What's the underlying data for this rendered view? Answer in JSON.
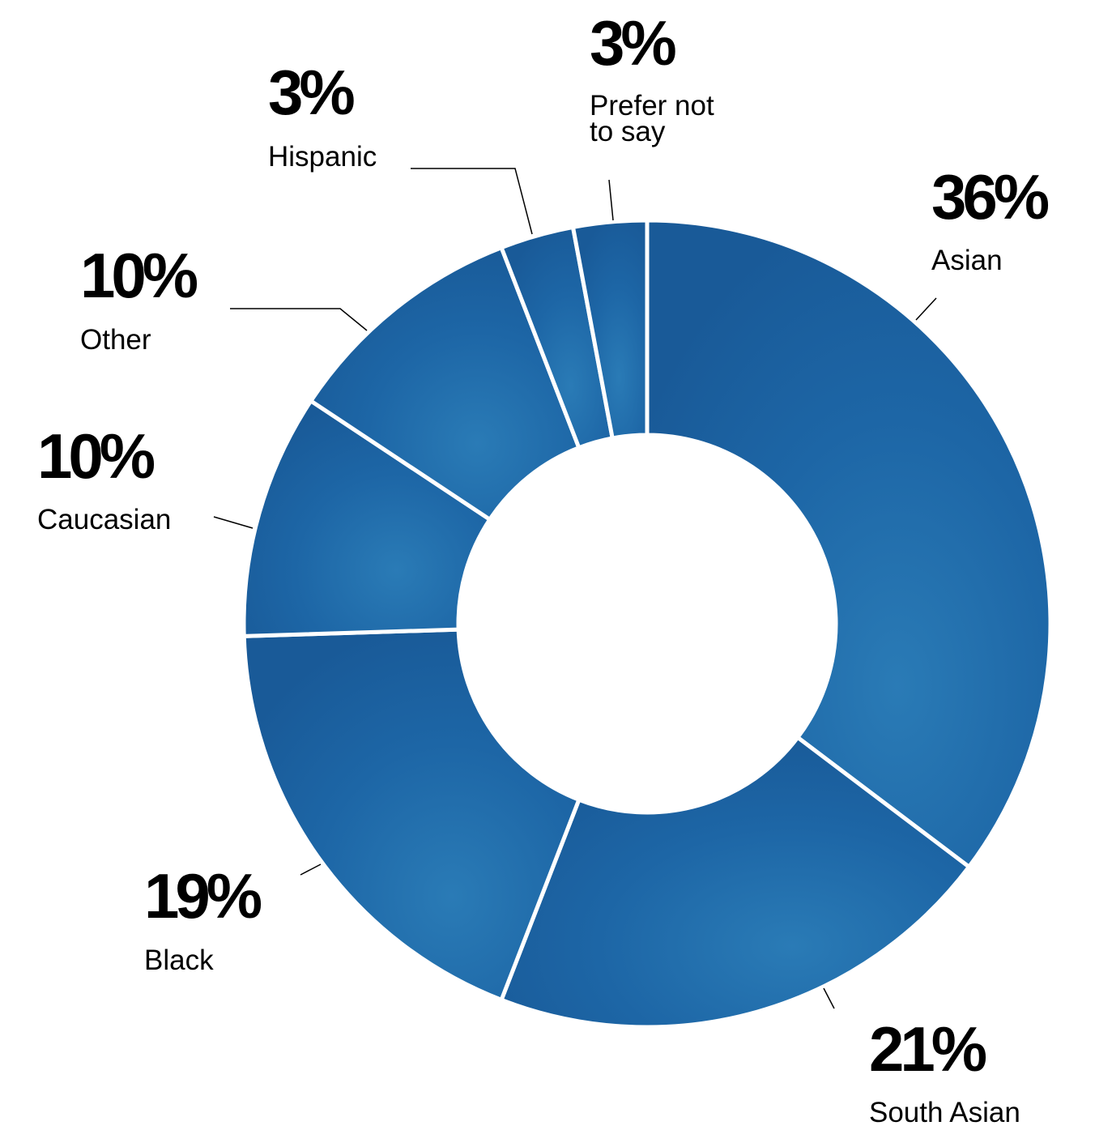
{
  "chart_data": {
    "type": "pie",
    "variant": "donut",
    "slices": [
      {
        "name": "Asian",
        "value": 36,
        "value_label": "36%",
        "label_lines": [
          "Asian"
        ]
      },
      {
        "name": "South Asian",
        "value": 21,
        "value_label": "21%",
        "label_lines": [
          "South Asian"
        ]
      },
      {
        "name": "Black",
        "value": 19,
        "value_label": "19%",
        "label_lines": [
          "Black"
        ]
      },
      {
        "name": "Caucasian",
        "value": 10,
        "value_label": "10%",
        "label_lines": [
          "Caucasian"
        ]
      },
      {
        "name": "Other",
        "value": 10,
        "value_label": "10%",
        "label_lines": [
          "Other"
        ]
      },
      {
        "name": "Hispanic",
        "value": 3,
        "value_label": "3%",
        "label_lines": [
          "Hispanic"
        ]
      },
      {
        "name": "Prefer not to say",
        "value": 3,
        "value_label": "3%",
        "label_lines": [
          "Prefer not",
          "to say"
        ]
      }
    ],
    "colors": {
      "slice_fill": "#1b5f9f",
      "slice_fill_light": "#2676b0",
      "separator": "#ffffff",
      "text": "#000000",
      "leader": "#000000"
    }
  }
}
